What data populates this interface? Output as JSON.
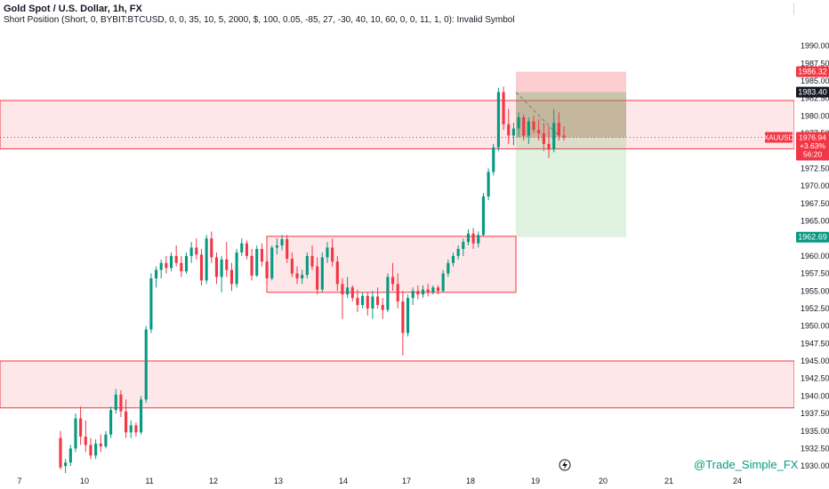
{
  "header": {
    "title": "Gold Spot / U.S. Dollar, 1h, FX",
    "subtitle": "Short Position (Short, 0, BYBIT:BTCUSD, 0, 0, 35, 10, 5, 2000, $, 100, 0.05, -85, 27, -30, 40, 10, 60, 0, 0, 11, 1, 0): Invalid Symbol"
  },
  "watermark": "@Trade_Simple_FX",
  "colors": {
    "up": "#089981",
    "down": "#f23645",
    "zone_fill": "rgba(242,54,69,0.12)",
    "zone_line": "#f23645",
    "target_fill": "rgba(76,175,80,0.30)",
    "target_fill_light": "rgba(76,175,80,0.18)",
    "stop_fill": "rgba(242,54,69,0.25)"
  },
  "chart_data": {
    "type": "candlestick",
    "symbol": "XAUUSD",
    "ylim": [
      1929,
      1993
    ],
    "y_ticks": [
      1930.0,
      1932.5,
      1935.0,
      1937.5,
      1940.0,
      1942.5,
      1945.0,
      1947.5,
      1950.0,
      1952.5,
      1955.0,
      1957.5,
      1960.0,
      1962.5,
      1965.0,
      1967.5,
      1970.0,
      1972.5,
      1975.0,
      1977.5,
      1980.0,
      1982.5,
      1985.0,
      1987.5,
      1990.0
    ],
    "x_ticks": [
      "7",
      "10",
      "11",
      "12",
      "13",
      "14",
      "17",
      "18",
      "19",
      "20",
      "21",
      "24"
    ],
    "zones": [
      {
        "top": 1982.2,
        "bottom": 1975.3
      },
      {
        "top": 1962.8,
        "bottom": 1954.8
      },
      {
        "top": 1945.0,
        "bottom": 1938.3
      }
    ],
    "position": {
      "entry": 1976.94,
      "stop": 1986.32,
      "target": 1962.69,
      "entry_price_label": "1983.40"
    },
    "price_labels": [
      {
        "value": 1986.32,
        "text": "1986.32",
        "color": "#f23645"
      },
      {
        "value": 1983.4,
        "text": "1983.40",
        "color": "#131722"
      },
      {
        "value": 1976.94,
        "text": "1976.94",
        "color": "#f23645"
      },
      {
        "value": 1962.69,
        "text": "1962.69",
        "color": "#089981"
      }
    ],
    "current": {
      "symbol": "XAUUSD",
      "price": "1976.94",
      "change": "+3.63%",
      "countdown": "56:20"
    },
    "candles": [
      {
        "o": 1934.0,
        "h": 1935.0,
        "l": 1929.5,
        "c": 1929.8
      },
      {
        "o": 1930.0,
        "h": 1931.0,
        "l": 1929.0,
        "c": 1930.5
      },
      {
        "o": 1930.5,
        "h": 1933.0,
        "l": 1930.0,
        "c": 1932.5
      },
      {
        "o": 1932.5,
        "h": 1937.5,
        "l": 1932.0,
        "c": 1936.8
      },
      {
        "o": 1936.8,
        "h": 1938.5,
        "l": 1933.0,
        "c": 1934.2
      },
      {
        "o": 1934.2,
        "h": 1936.5,
        "l": 1932.0,
        "c": 1933.0
      },
      {
        "o": 1933.0,
        "h": 1934.0,
        "l": 1931.0,
        "c": 1931.5
      },
      {
        "o": 1931.5,
        "h": 1933.8,
        "l": 1931.0,
        "c": 1933.2
      },
      {
        "o": 1933.2,
        "h": 1934.5,
        "l": 1932.0,
        "c": 1932.8
      },
      {
        "o": 1932.8,
        "h": 1935.0,
        "l": 1932.5,
        "c": 1934.5
      },
      {
        "o": 1934.5,
        "h": 1938.5,
        "l": 1934.0,
        "c": 1938.0
      },
      {
        "o": 1938.0,
        "h": 1941.0,
        "l": 1937.5,
        "c": 1940.2
      },
      {
        "o": 1940.2,
        "h": 1940.8,
        "l": 1937.0,
        "c": 1937.8
      },
      {
        "o": 1937.8,
        "h": 1939.5,
        "l": 1934.0,
        "c": 1934.8
      },
      {
        "o": 1934.8,
        "h": 1936.5,
        "l": 1934.0,
        "c": 1935.8
      },
      {
        "o": 1935.8,
        "h": 1936.2,
        "l": 1934.2,
        "c": 1934.8
      },
      {
        "o": 1934.8,
        "h": 1940.0,
        "l": 1934.5,
        "c": 1939.5
      },
      {
        "o": 1939.5,
        "h": 1950.0,
        "l": 1939.0,
        "c": 1949.5
      },
      {
        "o": 1949.5,
        "h": 1957.5,
        "l": 1949.0,
        "c": 1956.8
      },
      {
        "o": 1956.8,
        "h": 1958.5,
        "l": 1955.5,
        "c": 1958.0
      },
      {
        "o": 1958.0,
        "h": 1959.5,
        "l": 1956.8,
        "c": 1959.0
      },
      {
        "o": 1959.0,
        "h": 1960.0,
        "l": 1957.5,
        "c": 1958.3
      },
      {
        "o": 1958.3,
        "h": 1960.5,
        "l": 1957.8,
        "c": 1960.0
      },
      {
        "o": 1960.0,
        "h": 1961.5,
        "l": 1958.5,
        "c": 1959.0
      },
      {
        "o": 1959.0,
        "h": 1960.0,
        "l": 1957.0,
        "c": 1957.8
      },
      {
        "o": 1957.8,
        "h": 1960.5,
        "l": 1957.5,
        "c": 1960.0
      },
      {
        "o": 1960.0,
        "h": 1962.0,
        "l": 1959.0,
        "c": 1961.2
      },
      {
        "o": 1961.2,
        "h": 1962.5,
        "l": 1959.5,
        "c": 1960.2
      },
      {
        "o": 1960.2,
        "h": 1961.0,
        "l": 1955.8,
        "c": 1956.5
      },
      {
        "o": 1956.5,
        "h": 1963.0,
        "l": 1956.0,
        "c": 1962.5
      },
      {
        "o": 1962.5,
        "h": 1963.5,
        "l": 1959.0,
        "c": 1959.8
      },
      {
        "o": 1959.8,
        "h": 1960.5,
        "l": 1956.0,
        "c": 1957.0
      },
      {
        "o": 1957.0,
        "h": 1960.0,
        "l": 1954.8,
        "c": 1959.5
      },
      {
        "o": 1959.5,
        "h": 1962.0,
        "l": 1957.0,
        "c": 1958.0
      },
      {
        "o": 1958.0,
        "h": 1959.0,
        "l": 1955.0,
        "c": 1956.0
      },
      {
        "o": 1956.0,
        "h": 1961.0,
        "l": 1955.5,
        "c": 1960.5
      },
      {
        "o": 1960.5,
        "h": 1962.5,
        "l": 1960.0,
        "c": 1961.8
      },
      {
        "o": 1961.8,
        "h": 1962.2,
        "l": 1959.5,
        "c": 1960.0
      },
      {
        "o": 1960.0,
        "h": 1961.0,
        "l": 1956.5,
        "c": 1957.2
      },
      {
        "o": 1957.2,
        "h": 1961.5,
        "l": 1957.0,
        "c": 1961.0
      },
      {
        "o": 1961.0,
        "h": 1961.8,
        "l": 1958.5,
        "c": 1959.2
      },
      {
        "o": 1959.2,
        "h": 1960.0,
        "l": 1956.0,
        "c": 1956.8
      },
      {
        "o": 1956.8,
        "h": 1961.5,
        "l": 1956.5,
        "c": 1961.2
      },
      {
        "o": 1961.2,
        "h": 1962.5,
        "l": 1960.2,
        "c": 1961.5
      },
      {
        "o": 1961.5,
        "h": 1963.0,
        "l": 1960.8,
        "c": 1962.4
      },
      {
        "o": 1962.4,
        "h": 1963.0,
        "l": 1959.0,
        "c": 1959.6
      },
      {
        "o": 1959.6,
        "h": 1960.5,
        "l": 1957.0,
        "c": 1957.5
      },
      {
        "o": 1957.5,
        "h": 1958.5,
        "l": 1956.0,
        "c": 1956.8
      },
      {
        "o": 1956.8,
        "h": 1958.0,
        "l": 1956.0,
        "c": 1957.3
      },
      {
        "o": 1957.3,
        "h": 1960.5,
        "l": 1956.8,
        "c": 1960.0
      },
      {
        "o": 1960.0,
        "h": 1961.5,
        "l": 1958.0,
        "c": 1958.5
      },
      {
        "o": 1958.5,
        "h": 1959.8,
        "l": 1954.5,
        "c": 1955.2
      },
      {
        "o": 1955.2,
        "h": 1960.5,
        "l": 1954.8,
        "c": 1959.8
      },
      {
        "o": 1959.8,
        "h": 1962.0,
        "l": 1959.0,
        "c": 1961.2
      },
      {
        "o": 1961.2,
        "h": 1962.5,
        "l": 1958.5,
        "c": 1959.2
      },
      {
        "o": 1959.2,
        "h": 1960.0,
        "l": 1955.0,
        "c": 1956.0
      },
      {
        "o": 1956.0,
        "h": 1956.8,
        "l": 1951.0,
        "c": 1954.5
      },
      {
        "o": 1954.5,
        "h": 1957.0,
        "l": 1954.0,
        "c": 1955.5
      },
      {
        "o": 1955.5,
        "h": 1955.8,
        "l": 1953.5,
        "c": 1954.0
      },
      {
        "o": 1954.0,
        "h": 1955.2,
        "l": 1952.0,
        "c": 1953.0
      },
      {
        "o": 1953.0,
        "h": 1954.8,
        "l": 1952.5,
        "c": 1954.3
      },
      {
        "o": 1954.3,
        "h": 1954.8,
        "l": 1951.5,
        "c": 1952.5
      },
      {
        "o": 1952.5,
        "h": 1955.0,
        "l": 1951.0,
        "c": 1954.2
      },
      {
        "o": 1954.2,
        "h": 1955.5,
        "l": 1952.5,
        "c": 1953.0
      },
      {
        "o": 1953.0,
        "h": 1954.0,
        "l": 1951.0,
        "c": 1952.3
      },
      {
        "o": 1952.3,
        "h": 1957.5,
        "l": 1952.0,
        "c": 1957.0
      },
      {
        "o": 1957.0,
        "h": 1959.0,
        "l": 1955.0,
        "c": 1956.0
      },
      {
        "o": 1956.0,
        "h": 1957.5,
        "l": 1952.5,
        "c": 1953.5
      },
      {
        "o": 1953.5,
        "h": 1955.0,
        "l": 1945.8,
        "c": 1949.0
      },
      {
        "o": 1949.0,
        "h": 1954.5,
        "l": 1948.5,
        "c": 1954.0
      },
      {
        "o": 1954.0,
        "h": 1955.5,
        "l": 1953.0,
        "c": 1955.0
      },
      {
        "o": 1955.0,
        "h": 1955.8,
        "l": 1953.8,
        "c": 1954.5
      },
      {
        "o": 1954.5,
        "h": 1955.8,
        "l": 1954.0,
        "c": 1955.2
      },
      {
        "o": 1955.2,
        "h": 1956.0,
        "l": 1954.2,
        "c": 1954.8
      },
      {
        "o": 1954.8,
        "h": 1955.8,
        "l": 1954.5,
        "c": 1955.5
      },
      {
        "o": 1955.5,
        "h": 1955.8,
        "l": 1954.5,
        "c": 1955.0
      },
      {
        "o": 1955.0,
        "h": 1958.0,
        "l": 1954.8,
        "c": 1957.5
      },
      {
        "o": 1957.5,
        "h": 1959.5,
        "l": 1957.0,
        "c": 1959.0
      },
      {
        "o": 1959.0,
        "h": 1960.5,
        "l": 1958.5,
        "c": 1960.0
      },
      {
        "o": 1960.0,
        "h": 1961.5,
        "l": 1959.5,
        "c": 1961.0
      },
      {
        "o": 1961.0,
        "h": 1962.5,
        "l": 1960.0,
        "c": 1962.0
      },
      {
        "o": 1962.0,
        "h": 1963.8,
        "l": 1961.5,
        "c": 1963.2
      },
      {
        "o": 1963.2,
        "h": 1964.0,
        "l": 1961.0,
        "c": 1961.8
      },
      {
        "o": 1961.8,
        "h": 1963.5,
        "l": 1961.2,
        "c": 1963.0
      },
      {
        "o": 1963.0,
        "h": 1969.0,
        "l": 1962.8,
        "c": 1968.5
      },
      {
        "o": 1968.5,
        "h": 1972.5,
        "l": 1968.0,
        "c": 1972.0
      },
      {
        "o": 1972.0,
        "h": 1976.0,
        "l": 1971.5,
        "c": 1975.5
      },
      {
        "o": 1975.5,
        "h": 1984.0,
        "l": 1975.0,
        "c": 1983.4
      },
      {
        "o": 1983.4,
        "h": 1984.2,
        "l": 1978.0,
        "c": 1978.8
      },
      {
        "o": 1978.8,
        "h": 1981.0,
        "l": 1976.0,
        "c": 1977.2
      },
      {
        "o": 1977.2,
        "h": 1979.0,
        "l": 1975.8,
        "c": 1978.2
      },
      {
        "o": 1978.2,
        "h": 1980.5,
        "l": 1977.0,
        "c": 1979.8
      },
      {
        "o": 1979.8,
        "h": 1980.2,
        "l": 1976.5,
        "c": 1977.2
      },
      {
        "o": 1977.2,
        "h": 1979.8,
        "l": 1976.0,
        "c": 1979.2
      },
      {
        "o": 1979.2,
        "h": 1980.0,
        "l": 1977.5,
        "c": 1978.0
      },
      {
        "o": 1978.0,
        "h": 1979.5,
        "l": 1976.5,
        "c": 1977.5
      },
      {
        "o": 1977.5,
        "h": 1979.0,
        "l": 1975.0,
        "c": 1976.0
      },
      {
        "o": 1976.0,
        "h": 1978.5,
        "l": 1974.0,
        "c": 1975.2
      },
      {
        "o": 1975.2,
        "h": 1981.0,
        "l": 1974.8,
        "c": 1979.0
      },
      {
        "o": 1979.0,
        "h": 1980.5,
        "l": 1976.5,
        "c": 1977.2
      },
      {
        "o": 1977.2,
        "h": 1978.5,
        "l": 1976.5,
        "c": 1976.94
      }
    ]
  }
}
